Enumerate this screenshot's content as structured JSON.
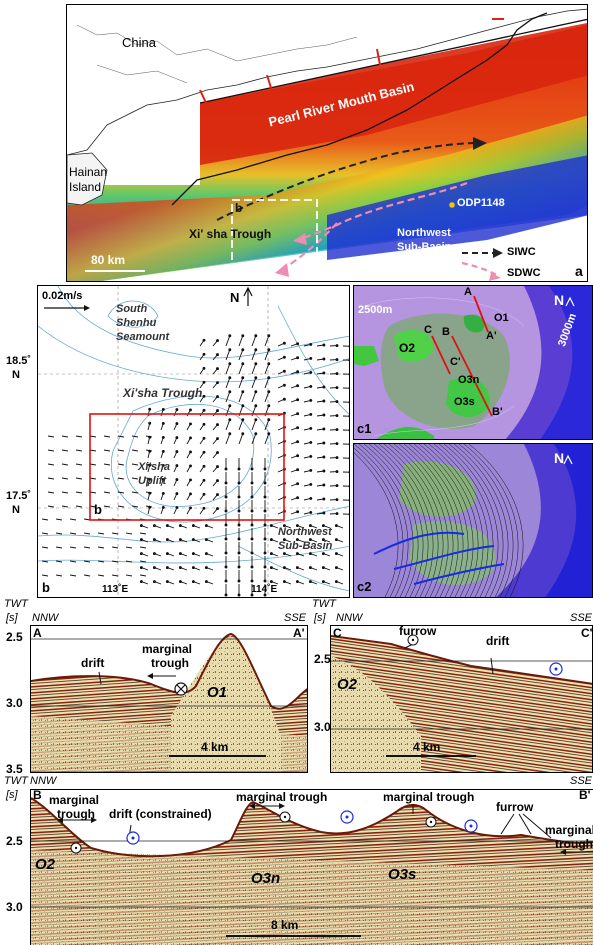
{
  "panel_a": {
    "label": "a",
    "china": "China",
    "hainan_1": "Hainan",
    "hainan_2": "Island",
    "prmb": "Pearl River Mouth Basin",
    "xisha_trough": "Xi' sha Trough",
    "odp": "ODP1148",
    "nw_1": "Northwest",
    "nw_2": "Sub-Basin",
    "scale": "80 km",
    "inset_label": "b",
    "legend_siwc": "SIWC",
    "legend_sdwc": "SDWC",
    "color_siwc": "#222222",
    "color_sdwc": "#f08cb4"
  },
  "panel_b": {
    "label": "b",
    "inset_label": "b",
    "scale": "0.02m/s",
    "north": "N",
    "south_1": "South",
    "south_2": "Shenhu",
    "south_3": "Seamount",
    "trough": "Xi'sha Trough",
    "uplift_1": "Xi'sha",
    "uplift_2": "Uplift",
    "nw_1": "Northwest",
    "nw_2": "Sub-Basin",
    "lat_185": "18.5˚",
    "lat_185n": "N",
    "lat_175": "17.5˚",
    "lat_175n": "N",
    "lon_113": "113˚E",
    "lon_114": "114˚E"
  },
  "panel_c1": {
    "label": "c1",
    "north": "N",
    "depth_2500": "2500m",
    "depth_3000": "3000m",
    "A": "A",
    "A2": "A'",
    "B": "B",
    "B2": "B'",
    "C": "C",
    "C2": "C'",
    "O1": "O1",
    "O2": "O2",
    "O3n": "O3n",
    "O3s": "O3s"
  },
  "panel_c2": {
    "label": "c2",
    "north": "N"
  },
  "seis_a": {
    "twt": "TWT",
    "unit": "[s]",
    "nnw": "NNW",
    "sse": "SSE",
    "start": "A",
    "end": "A'",
    "t25": "2.5",
    "t30": "3.0",
    "t35": "3.5",
    "drift": "drift",
    "marginal_1": "marginal",
    "marginal_2": "trough",
    "o1": "O1",
    "scale": "4 km"
  },
  "seis_c": {
    "twt": "TWT",
    "unit": "[s]",
    "nnw": "NNW",
    "sse": "SSE",
    "start": "C",
    "end": "C'",
    "t25": "2.5",
    "t30": "3.0",
    "furrow": "furrow",
    "drift": "drift",
    "o2": "O2",
    "scale": "4 km"
  },
  "seis_b": {
    "twt": "TWT",
    "unit": "[s]",
    "nnw": "NNW",
    "sse": "SSE",
    "start": "B",
    "end": "B'",
    "t25": "2.5",
    "t30": "3.0",
    "marginal_1": "marginal",
    "marginal_2": "trough",
    "drift": "drift (constrained)",
    "marginal_trough": "marginal trough",
    "marginal_trough2": "marginal trough",
    "furrow": "furrow",
    "marginal_r1": "marginal",
    "marginal_r2": "trough",
    "o2": "O2",
    "o3n": "O3n",
    "o3s": "O3s",
    "scale": "8 km"
  }
}
